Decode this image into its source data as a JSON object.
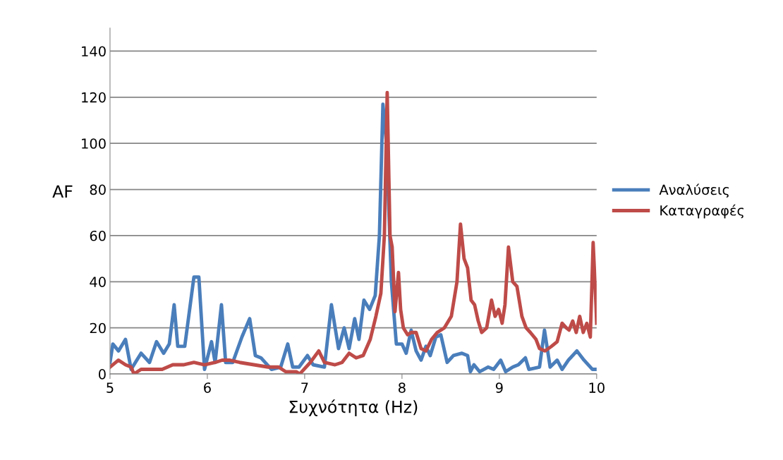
{
  "chart_data": {
    "type": "line",
    "xlabel": "Συχνότητα (Hz)",
    "ylabel": "AF",
    "xlim": [
      5,
      10
    ],
    "xticks": [
      5,
      6,
      7,
      8,
      9,
      10
    ],
    "ylim": [
      0,
      150
    ],
    "yticks": [
      0,
      20,
      40,
      60,
      80,
      100,
      120,
      140
    ],
    "grid": "y",
    "legend": "right",
    "marker": "none",
    "line_style": "solid",
    "series": [
      {
        "name": "Αναλύσεις",
        "color": "#4a7ebb",
        "x": [
          5.0,
          5.029,
          5.087,
          5.159,
          5.217,
          5.319,
          5.406,
          5.478,
          5.551,
          5.609,
          5.659,
          5.696,
          5.768,
          5.862,
          5.913,
          5.971,
          6.043,
          6.08,
          6.145,
          6.188,
          6.261,
          6.355,
          6.435,
          6.493,
          6.551,
          6.659,
          6.754,
          6.826,
          6.877,
          6.942,
          7.029,
          7.087,
          7.203,
          7.275,
          7.348,
          7.406,
          7.457,
          7.514,
          7.558,
          7.609,
          7.667,
          7.725,
          7.768,
          7.804,
          7.841,
          7.891,
          7.942,
          8.0,
          8.043,
          8.094,
          8.145,
          8.196,
          8.246,
          8.29,
          8.348,
          8.399,
          8.464,
          8.529,
          8.616,
          8.674,
          8.703,
          8.739,
          8.797,
          8.884,
          8.942,
          9.014,
          9.065,
          9.138,
          9.196,
          9.268,
          9.304,
          9.413,
          9.464,
          9.522,
          9.594,
          9.645,
          9.71,
          9.797,
          9.87,
          9.957,
          10.0
        ],
        "values": [
          5,
          13,
          10,
          15,
          2,
          9,
          5,
          14,
          9,
          13,
          30,
          12,
          12,
          42,
          42,
          2,
          14,
          5,
          30,
          5,
          5,
          16,
          24,
          8,
          7,
          2,
          3,
          13,
          3,
          3,
          8,
          4,
          3,
          30,
          11,
          20,
          11,
          24,
          15,
          32,
          28,
          34,
          60,
          117,
          100,
          40,
          13,
          13,
          9,
          19,
          10,
          6,
          12,
          8,
          16,
          17,
          5,
          8,
          9,
          8,
          1,
          4,
          1,
          3,
          2,
          6,
          1,
          3,
          4,
          7,
          2,
          3,
          19,
          3,
          6,
          2,
          6,
          10,
          6,
          2,
          2
        ]
      },
      {
        "name": "Καταγραφές",
        "color": "#be4b48",
        "x": [
          5.0,
          5.087,
          5.159,
          5.217,
          5.246,
          5.319,
          5.428,
          5.536,
          5.645,
          5.754,
          5.862,
          5.971,
          6.08,
          6.152,
          6.225,
          6.333,
          6.478,
          6.623,
          6.732,
          6.804,
          6.913,
          6.949,
          7.058,
          7.145,
          7.203,
          7.312,
          7.384,
          7.457,
          7.529,
          7.601,
          7.674,
          7.732,
          7.783,
          7.819,
          7.848,
          7.877,
          7.899,
          7.928,
          7.964,
          7.986,
          8.014,
          8.058,
          8.094,
          8.145,
          8.196,
          8.246,
          8.304,
          8.362,
          8.435,
          8.507,
          8.565,
          8.601,
          8.638,
          8.674,
          8.71,
          8.746,
          8.783,
          8.819,
          8.87,
          8.92,
          8.957,
          8.993,
          9.029,
          9.058,
          9.094,
          9.138,
          9.181,
          9.232,
          9.275,
          9.319,
          9.377,
          9.413,
          9.471,
          9.536,
          9.594,
          9.645,
          9.688,
          9.717,
          9.754,
          9.79,
          9.826,
          9.862,
          9.899,
          9.935,
          9.964,
          9.993,
          10.0
        ],
        "values": [
          3,
          6,
          4,
          3,
          0,
          2,
          2,
          2,
          4,
          4,
          5,
          4,
          5,
          6,
          6,
          5,
          4,
          3,
          3,
          1,
          1,
          0,
          5,
          10,
          5,
          4,
          5,
          9,
          7,
          8,
          15,
          25,
          35,
          60,
          122,
          60,
          55,
          27,
          44,
          28,
          20,
          17,
          18,
          18,
          11,
          10,
          15,
          18,
          20,
          25,
          40,
          65,
          50,
          46,
          32,
          30,
          23,
          18,
          20,
          32,
          25,
          28,
          22,
          30,
          55,
          40,
          38,
          25,
          20,
          18,
          15,
          11,
          10,
          12,
          14,
          22,
          20,
          19,
          23,
          18,
          25,
          18,
          22,
          16,
          57,
          30,
          22
        ]
      }
    ]
  }
}
